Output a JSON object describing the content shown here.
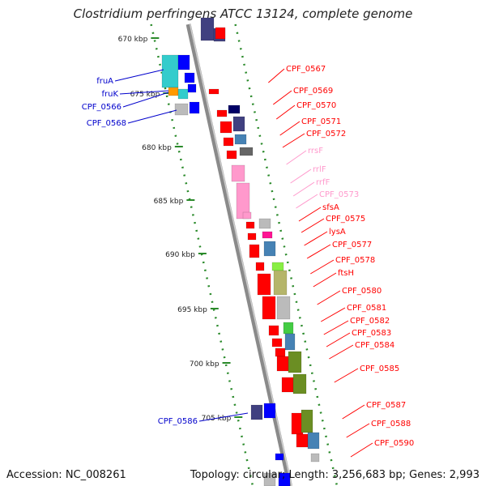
{
  "title": "Clostridium perfringens ATCC 13124, complete genome",
  "footer": {
    "accession": "Accession: NC_008261",
    "topology": "Topology: circular; Length: 3,256,683 bp; Genes: 2,993"
  },
  "ticks": [
    "670 kbp",
    "675 kbp",
    "680 kbp",
    "685 kbp",
    "690 kbp",
    "695 kbp",
    "700 kbp",
    "705 kbp"
  ],
  "left_genes": [
    "fruA",
    "fruK",
    "CPF_0566",
    "CPF_0568",
    "CPF_0586"
  ],
  "right_genes": [
    "CPF_0567",
    "CPF_0569",
    "CPF_0570",
    "CPF_0571",
    "CPF_0572",
    "rrsF",
    "rrlF",
    "rrfF",
    "CPF_0573",
    "sfsA",
    "CPF_0575",
    "lysA",
    "CPF_0577",
    "CPF_0578",
    "ftsH",
    "CPF_0580",
    "CPF_0581",
    "CPF_0582",
    "CPF_0583",
    "CPF_0584",
    "CPF_0585",
    "CPF_0587",
    "CPF_0588",
    "CPF_0590"
  ],
  "colors": {
    "backbone": "#8a8a8a",
    "gene_red": "#ff0000",
    "rrna_pink": "#ff99cc",
    "blue_label": "#0000cc",
    "tick_green": "#2a8a2a"
  }
}
